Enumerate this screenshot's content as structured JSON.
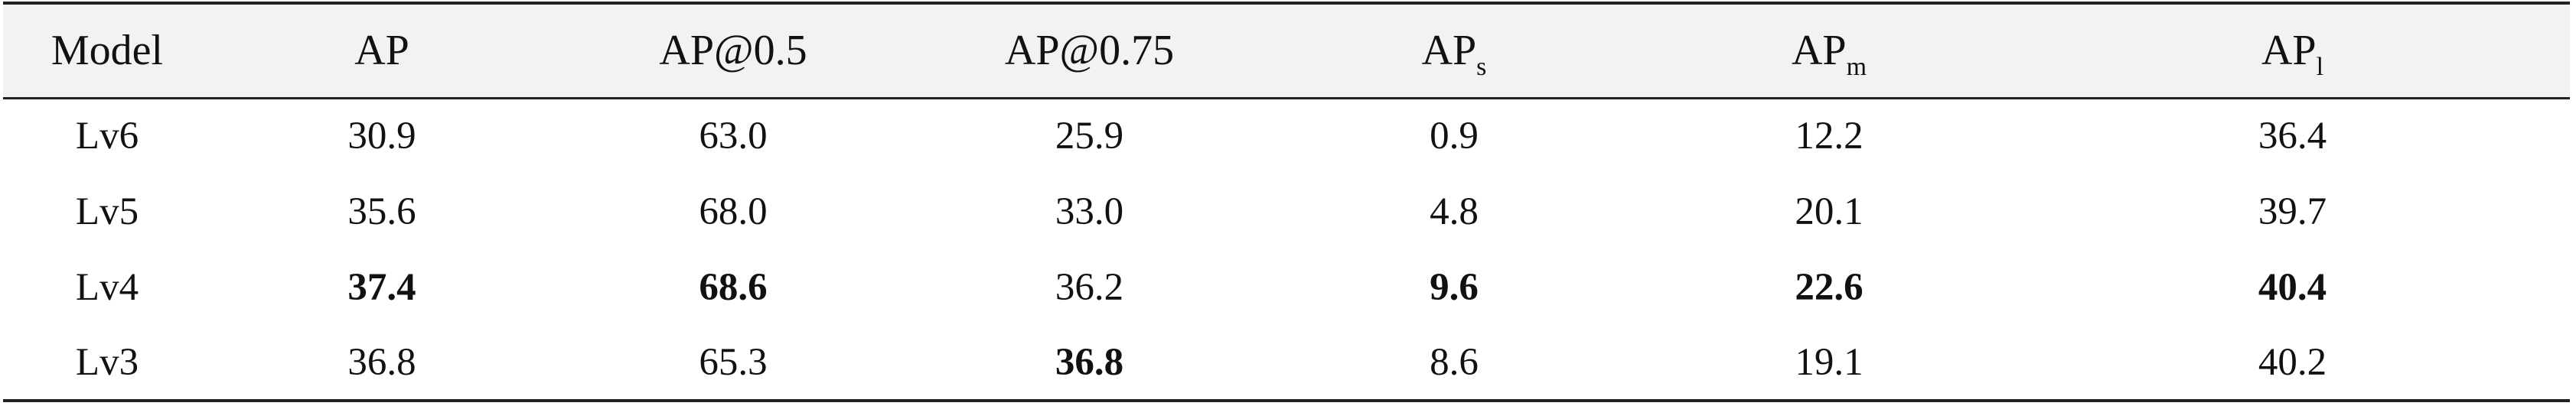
{
  "table": {
    "headers": [
      {
        "main": "Model",
        "sub": ""
      },
      {
        "main": "AP",
        "sub": ""
      },
      {
        "main": "AP@0.5",
        "sub": ""
      },
      {
        "main": "AP@0.75",
        "sub": ""
      },
      {
        "main": "AP",
        "sub": "s"
      },
      {
        "main": "AP",
        "sub": "m"
      },
      {
        "main": "AP",
        "sub": "l"
      }
    ],
    "rows": [
      {
        "model": "Lv6",
        "cells": [
          {
            "value": "30.9",
            "bold": false
          },
          {
            "value": "63.0",
            "bold": false
          },
          {
            "value": "25.9",
            "bold": false
          },
          {
            "value": "0.9",
            "bold": false
          },
          {
            "value": "12.2",
            "bold": false
          },
          {
            "value": "36.4",
            "bold": false
          }
        ]
      },
      {
        "model": "Lv5",
        "cells": [
          {
            "value": "35.6",
            "bold": false
          },
          {
            "value": "68.0",
            "bold": false
          },
          {
            "value": "33.0",
            "bold": false
          },
          {
            "value": "4.8",
            "bold": false
          },
          {
            "value": "20.1",
            "bold": false
          },
          {
            "value": "39.7",
            "bold": false
          }
        ]
      },
      {
        "model": "Lv4",
        "cells": [
          {
            "value": "37.4",
            "bold": true
          },
          {
            "value": "68.6",
            "bold": true
          },
          {
            "value": "36.2",
            "bold": false
          },
          {
            "value": "9.6",
            "bold": true
          },
          {
            "value": "22.6",
            "bold": true
          },
          {
            "value": "40.4",
            "bold": true
          }
        ]
      },
      {
        "model": "Lv3",
        "cells": [
          {
            "value": "36.8",
            "bold": false
          },
          {
            "value": "65.3",
            "bold": false
          },
          {
            "value": "36.8",
            "bold": true
          },
          {
            "value": "8.6",
            "bold": false
          },
          {
            "value": "19.1",
            "bold": false
          },
          {
            "value": "40.2",
            "bold": false
          }
        ]
      }
    ]
  }
}
